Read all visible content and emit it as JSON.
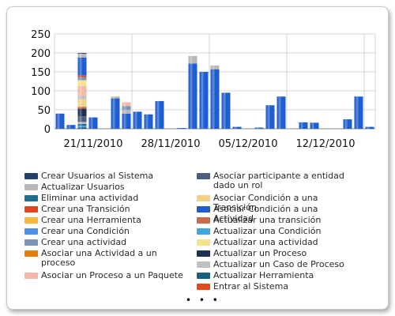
{
  "chart_data": {
    "type": "bar",
    "stacked": true,
    "ylim": [
      0,
      250
    ],
    "yticks": [
      0,
      50,
      100,
      150,
      200,
      250
    ],
    "xtick_labels": [
      "21/11/2010",
      "28/11/2010",
      "05/12/2010",
      "12/12/2010"
    ],
    "grid": true,
    "legend_placement": "bottom",
    "title": "",
    "xlabel": "",
    "ylabel": "",
    "bars": [
      {
        "day": 0,
        "stack": [
          {
            "s": 11,
            "v": 40
          }
        ]
      },
      {
        "day": 1,
        "stack": [
          {
            "s": 11,
            "v": 10
          }
        ]
      },
      {
        "day": 2,
        "stack": [
          {
            "s": 0,
            "v": 3
          },
          {
            "s": 13,
            "v": 5
          },
          {
            "s": 2,
            "v": 5
          },
          {
            "s": 1,
            "v": 5
          },
          {
            "s": 9,
            "v": 15
          },
          {
            "s": 15,
            "v": 20
          },
          {
            "s": 12,
            "v": 5
          },
          {
            "s": 10,
            "v": 20
          },
          {
            "s": 16,
            "v": 10
          },
          {
            "s": 8,
            "v": 25
          },
          {
            "s": 14,
            "v": 15
          },
          {
            "s": 6,
            "v": 8
          },
          {
            "s": 3,
            "v": 5
          },
          {
            "s": 11,
            "v": 47
          },
          {
            "s": 1,
            "v": 10
          },
          {
            "s": 0,
            "v": 2
          }
        ]
      },
      {
        "day": 3,
        "stack": [
          {
            "s": 11,
            "v": 30
          }
        ]
      },
      {
        "day": 5,
        "stack": [
          {
            "s": 11,
            "v": 80
          },
          {
            "s": 1,
            "v": 5
          }
        ]
      },
      {
        "day": 6,
        "stack": [
          {
            "s": 11,
            "v": 40
          },
          {
            "s": 1,
            "v": 10
          },
          {
            "s": 6,
            "v": 10
          },
          {
            "s": 8,
            "v": 10
          }
        ]
      },
      {
        "day": 7,
        "stack": [
          {
            "s": 11,
            "v": 45
          }
        ]
      },
      {
        "day": 8,
        "stack": [
          {
            "s": 11,
            "v": 38
          }
        ]
      },
      {
        "day": 9,
        "stack": [
          {
            "s": 11,
            "v": 73
          }
        ]
      },
      {
        "day": 11,
        "stack": [
          {
            "s": 11,
            "v": 2
          }
        ]
      },
      {
        "day": 12,
        "stack": [
          {
            "s": 11,
            "v": 172
          },
          {
            "s": 1,
            "v": 20
          }
        ]
      },
      {
        "day": 13,
        "stack": [
          {
            "s": 11,
            "v": 150
          }
        ]
      },
      {
        "day": 14,
        "stack": [
          {
            "s": 11,
            "v": 157
          },
          {
            "s": 1,
            "v": 10
          }
        ]
      },
      {
        "day": 15,
        "stack": [
          {
            "s": 11,
            "v": 95
          }
        ]
      },
      {
        "day": 16,
        "stack": [
          {
            "s": 11,
            "v": 5
          }
        ]
      },
      {
        "day": 18,
        "stack": [
          {
            "s": 11,
            "v": 3
          }
        ]
      },
      {
        "day": 19,
        "stack": [
          {
            "s": 11,
            "v": 62
          }
        ]
      },
      {
        "day": 20,
        "stack": [
          {
            "s": 11,
            "v": 85
          }
        ]
      },
      {
        "day": 22,
        "stack": [
          {
            "s": 11,
            "v": 17
          }
        ]
      },
      {
        "day": 23,
        "stack": [
          {
            "s": 11,
            "v": 16
          }
        ]
      },
      {
        "day": 26,
        "stack": [
          {
            "s": 11,
            "v": 25
          }
        ]
      },
      {
        "day": 27,
        "stack": [
          {
            "s": 11,
            "v": 85
          }
        ]
      },
      {
        "day": 28,
        "stack": [
          {
            "s": 11,
            "v": 5
          }
        ]
      }
    ],
    "series": [
      {
        "name": "Crear Usuarios al Sistema",
        "color": "#243f6e"
      },
      {
        "name": "Actualizar Usuarios",
        "color": "#b8b8b8"
      },
      {
        "name": "Eliminar una actividad",
        "color": "#1d6e8f"
      },
      {
        "name": "Crear una Transición",
        "color": "#e0461c"
      },
      {
        "name": "Crear una Herramienta",
        "color": "#f6b73c"
      },
      {
        "name": "Crear una Condición",
        "color": "#4d8ee6"
      },
      {
        "name": "Crear una actividad",
        "color": "#7d92b4"
      },
      {
        "name": "Asociar una Actividad a un proceso",
        "color": "#e27d0b"
      },
      {
        "name": "Asociar un Proceso a un Paquete",
        "color": "#f3b9a8"
      },
      {
        "name": "Asociar participante a entidad dado un rol",
        "color": "#4c5d7e"
      },
      {
        "name": "Asociar Condición a una Transición",
        "color": "#f3d187"
      },
      {
        "name": "Asociar Condición a una Actividad",
        "color": "#1f5ecf"
      },
      {
        "name": "Actualizar una transición",
        "color": "#c76a50"
      },
      {
        "name": "Actualizar una Condición",
        "color": "#3fa6df"
      },
      {
        "name": "Actualizar una actividad",
        "color": "#f6e28a"
      },
      {
        "name": "Actualizar un Proceso",
        "color": "#1e3058"
      },
      {
        "name": "Actualizar un Caso de Proceso",
        "color": "#c0c0c0"
      },
      {
        "name": "Actualizar Herramienta",
        "color": "#17617d"
      },
      {
        "name": "Entrar al Sistema",
        "color": "#e64a1a"
      }
    ]
  },
  "legend_more": "• • •"
}
